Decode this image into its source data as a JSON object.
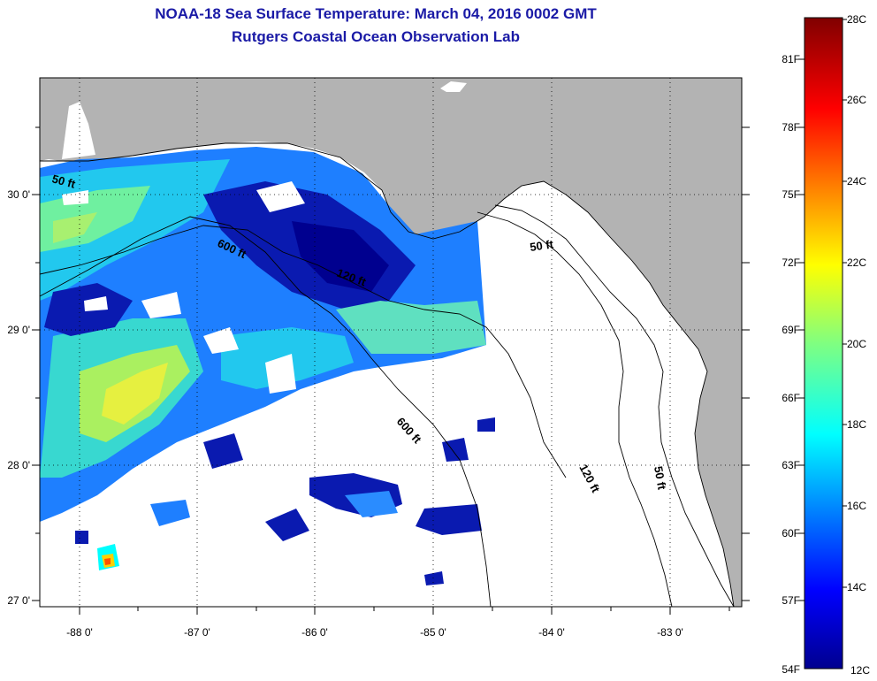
{
  "title": "NOAA-18 Sea Surface Temperature:  March 04, 2016 0002 GMT",
  "subtitle": "Rutgers Coastal Ocean Observation Lab",
  "lon_ticks": [
    "-88 0'",
    "-87 0'",
    "-86 0'",
    "-85 0'",
    "-84 0'",
    "-83 0'"
  ],
  "lat_ticks": [
    "30 0'",
    "29 0'",
    "28 0'",
    "27 0'"
  ],
  "contour_labels": [
    "50 ft",
    "50 ft",
    "120 ft",
    "120 ft",
    "600 ft",
    "600 ft",
    "50 ft"
  ],
  "colorbar": {
    "fahrenheit": [
      "81F",
      "78F",
      "75F",
      "72F",
      "69F",
      "66F",
      "63F",
      "60F",
      "57F",
      "54F"
    ],
    "celsius": [
      "28C",
      "26C",
      "24C",
      "22C",
      "20C",
      "18C",
      "16C",
      "14C",
      "12C"
    ]
  },
  "colors": {
    "title": "#1a1aa6",
    "land": "#b3b3b3",
    "cloud_white": "#ffffff",
    "sst_cold": "#00008f",
    "sst_warm": "#800000"
  }
}
